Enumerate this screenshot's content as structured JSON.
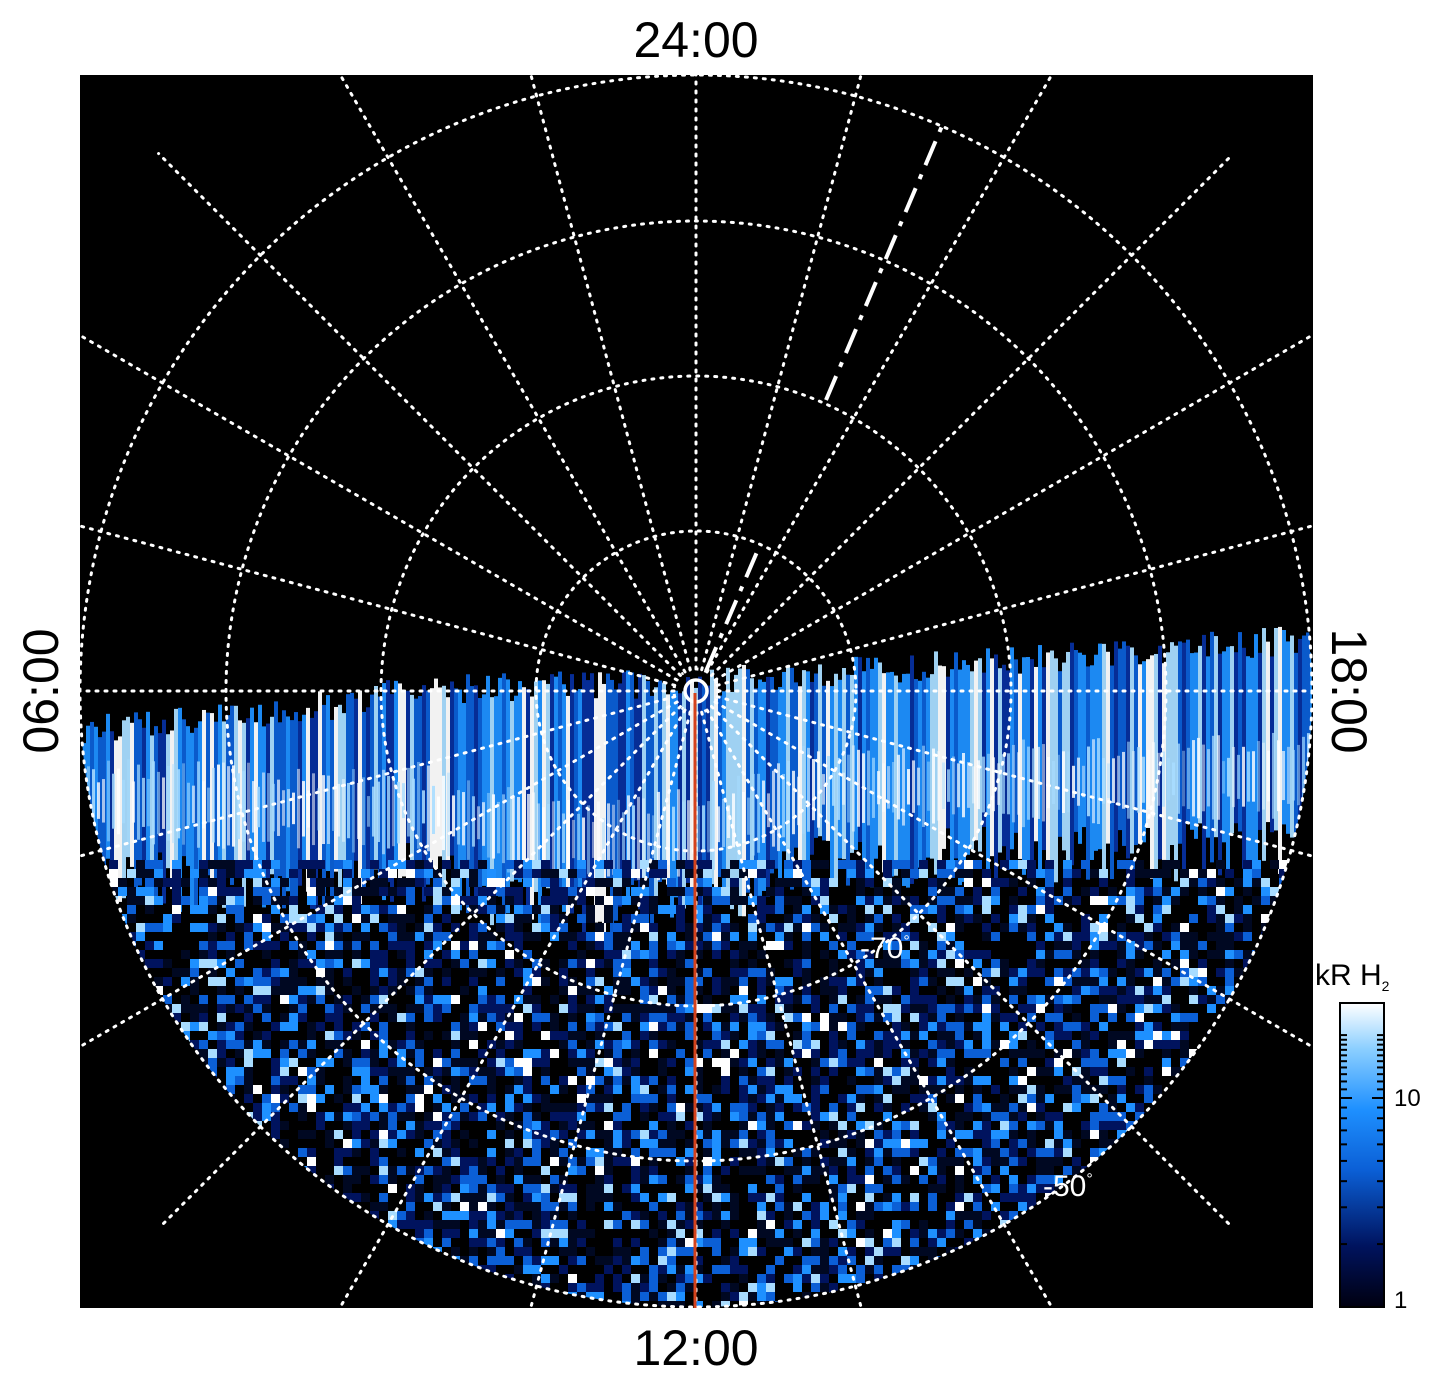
{
  "local_time_labels": {
    "top": "24:00",
    "bottom": "12:00",
    "left": "06:00",
    "right": "18:00"
  },
  "latitude_labels": {
    "inner": "-70",
    "outer": "-50",
    "degree_symbol": "°"
  },
  "colorbar": {
    "title_main": "kR H",
    "title_sub": "2",
    "tick_max": "10",
    "tick_min": "1",
    "scale": "log",
    "colors": [
      "#000010",
      "#00135e",
      "#0b5fd6",
      "#1e90ff",
      "#8ccfff",
      "#ffffff"
    ]
  },
  "colors": {
    "background": "#000000",
    "grid": "#ffffff",
    "meridian_line": "#d4421c",
    "aurora_blue": "#1e90ff"
  }
}
